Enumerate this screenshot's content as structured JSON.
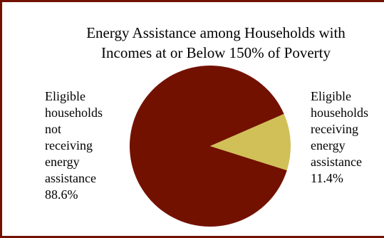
{
  "chart_data": {
    "type": "pie",
    "title_lines": [
      "Energy Assistance among Households with",
      "Incomes at or Below 150% of Poverty"
    ],
    "slices": [
      {
        "label_lines": [
          "Eligible",
          "households",
          "not",
          "receiving",
          "energy",
          "assistance"
        ],
        "value": 88.6,
        "value_label": "88.6%",
        "color": "#731100"
      },
      {
        "label_lines": [
          "Eligible",
          "households",
          "receiving",
          "energy",
          "assistance"
        ],
        "value": 11.4,
        "value_label": "11.4%",
        "color": "#d1c057"
      }
    ]
  },
  "colors": {
    "border": "#731100"
  }
}
